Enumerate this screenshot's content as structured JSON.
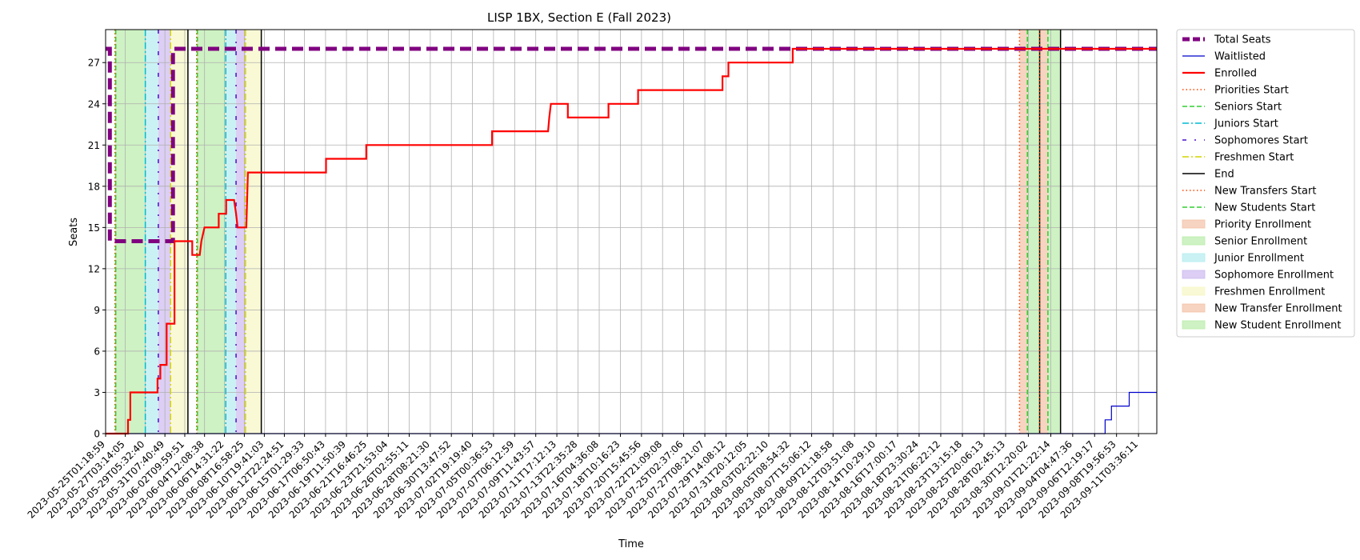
{
  "chart_data": {
    "type": "line",
    "title": "LISP 1BX, Section E (Fall 2023)",
    "xlabel": "Time",
    "ylabel": "Seats",
    "ylim": [
      0,
      29.4
    ],
    "yticks": [
      0,
      3,
      6,
      9,
      12,
      15,
      18,
      21,
      24,
      27
    ],
    "grid": true,
    "legend_position": "outside-right",
    "x_range": [
      "2023-05-25T01:18:59",
      "2023-09-13T02:00:00"
    ],
    "x_ticks": [
      "2023-05-25T01:18:59",
      "2023-05-27T03:14:05",
      "2023-05-29T05:32:40",
      "2023-05-31T07:40:49",
      "2023-06-02T09:59:51",
      "2023-06-04T12:08:38",
      "2023-06-06T14:31:22",
      "2023-06-08T16:58:25",
      "2023-06-10T19:41:03",
      "2023-06-12T22:24:51",
      "2023-06-15T01:29:33",
      "2023-06-17T06:50:43",
      "2023-06-19T11:50:39",
      "2023-06-21T16:46:25",
      "2023-06-23T21:53:04",
      "2023-06-26T02:55:11",
      "2023-06-28T08:21:30",
      "2023-06-30T13:47:52",
      "2023-07-02T19:19:40",
      "2023-07-05T00:36:53",
      "2023-07-07T06:12:59",
      "2023-07-09T11:43:57",
      "2023-07-11T17:12:13",
      "2023-07-13T22:35:28",
      "2023-07-16T04:36:08",
      "2023-07-18T10:16:23",
      "2023-07-20T15:45:56",
      "2023-07-22T21:09:08",
      "2023-07-25T02:37:06",
      "2023-07-27T08:21:07",
      "2023-07-29T14:08:12",
      "2023-07-31T20:12:05",
      "2023-08-03T02:22:10",
      "2023-08-05T08:54:32",
      "2023-08-07T15:06:12",
      "2023-08-09T21:18:58",
      "2023-08-12T03:51:08",
      "2023-08-14T10:29:10",
      "2023-08-16T17:00:17",
      "2023-08-18T23:30:24",
      "2023-08-21T06:22:12",
      "2023-08-23T13:15:18",
      "2023-08-25T20:06:13",
      "2023-08-28T02:45:13",
      "2023-08-30T12:20:02",
      "2023-09-01T21:22:14",
      "2023-09-04T04:47:36",
      "2023-09-06T12:19:17",
      "2023-09-08T19:56:53",
      "2023-09-11T03:36:11"
    ],
    "series": [
      {
        "name": "Total Seats",
        "color": "#800080",
        "style": "dashed-thick",
        "points": [
          [
            "2023-05-25T01:18:59",
            28
          ],
          [
            "2023-05-25T12:00:00",
            28
          ],
          [
            "2023-05-25T12:00:00",
            14
          ],
          [
            "2023-06-01T04:00:00",
            14
          ],
          [
            "2023-06-01T04:00:00",
            28
          ],
          [
            "2023-09-13T02:00:00",
            28
          ]
        ]
      },
      {
        "name": "Waitlisted",
        "color": "#0000cc",
        "style": "solid-thin",
        "points": [
          [
            "2023-05-25T01:18:59",
            0
          ],
          [
            "2023-09-07T15:00:00",
            0
          ],
          [
            "2023-09-07T15:00:00",
            1
          ],
          [
            "2023-09-08T07:00:00",
            1
          ],
          [
            "2023-09-08T07:00:00",
            2
          ],
          [
            "2023-09-10T04:00:00",
            2
          ],
          [
            "2023-09-10T04:00:00",
            3
          ],
          [
            "2023-09-13T02:00:00",
            3
          ]
        ]
      },
      {
        "name": "Enrolled",
        "color": "#ff0000",
        "style": "solid-thick",
        "points": [
          [
            "2023-05-25T01:18:59",
            0
          ],
          [
            "2023-05-27T10:00:00",
            0
          ],
          [
            "2023-05-27T10:00:00",
            1
          ],
          [
            "2023-05-27T16:00:00",
            1
          ],
          [
            "2023-05-27T16:00:00",
            3
          ],
          [
            "2023-05-30T13:00:00",
            3
          ],
          [
            "2023-05-30T13:00:00",
            4
          ],
          [
            "2023-05-30T20:00:00",
            4
          ],
          [
            "2023-05-30T20:00:00",
            5
          ],
          [
            "2023-05-31T12:00:00",
            5
          ],
          [
            "2023-05-31T12:00:00",
            8
          ],
          [
            "2023-06-01T08:00:00",
            8
          ],
          [
            "2023-06-01T08:00:00",
            14
          ],
          [
            "2023-06-03T05:00:00",
            14
          ],
          [
            "2023-06-03T05:00:00",
            13
          ],
          [
            "2023-06-04T00:00:00",
            13
          ],
          [
            "2023-06-04T04:00:00",
            14
          ],
          [
            "2023-06-04T12:00:00",
            15
          ],
          [
            "2023-06-06T00:00:00",
            15
          ],
          [
            "2023-06-06T00:00:00",
            16
          ],
          [
            "2023-06-06T19:00:00",
            16
          ],
          [
            "2023-06-06T19:00:00",
            17
          ],
          [
            "2023-06-07T15:00:00",
            17
          ],
          [
            "2023-06-07T20:00:00",
            16
          ],
          [
            "2023-06-08T00:00:00",
            15
          ],
          [
            "2023-06-08T22:00:00",
            15
          ],
          [
            "2023-06-09T02:00:00",
            19
          ],
          [
            "2023-06-17T08:00:00",
            19
          ],
          [
            "2023-06-17T08:00:00",
            20
          ],
          [
            "2023-06-21T14:00:00",
            20
          ],
          [
            "2023-06-21T14:00:00",
            21
          ],
          [
            "2023-07-04T21:00:00",
            21
          ],
          [
            "2023-07-04T21:00:00",
            22
          ],
          [
            "2023-07-10T19:00:00",
            22
          ],
          [
            "2023-07-10T22:00:00",
            23
          ],
          [
            "2023-07-11T02:00:00",
            24
          ],
          [
            "2023-07-12T21:00:00",
            24
          ],
          [
            "2023-07-12T21:00:00",
            23
          ],
          [
            "2023-07-17T04:00:00",
            23
          ],
          [
            "2023-07-17T04:00:00",
            24
          ],
          [
            "2023-07-20T07:00:00",
            24
          ],
          [
            "2023-07-20T07:00:00",
            25
          ],
          [
            "2023-07-29T05:00:00",
            25
          ],
          [
            "2023-07-29T05:00:00",
            26
          ],
          [
            "2023-07-29T20:00:00",
            26
          ],
          [
            "2023-07-29T20:00:00",
            27
          ],
          [
            "2023-08-05T15:00:00",
            27
          ],
          [
            "2023-08-05T15:00:00",
            28
          ],
          [
            "2023-09-13T02:00:00",
            28
          ]
        ]
      }
    ],
    "periods": [
      {
        "label": "Priority Enrollment",
        "color": "#f4c2a6",
        "start": "2023-05-26T01:00:00",
        "end": "2023-05-26T03:00:00"
      },
      {
        "label": "Senior Enrollment",
        "color": "#b9ecaa",
        "start": "2023-05-26T03:00:00",
        "end": "2023-05-29T06:00:00"
      },
      {
        "label": "Junior Enrollment",
        "color": "#b3ecf0",
        "start": "2023-05-29T06:00:00",
        "end": "2023-05-30T15:00:00"
      },
      {
        "label": "Sophomore Enrollment",
        "color": "#cdb9f0",
        "start": "2023-05-30T15:00:00",
        "end": "2023-05-31T22:00:00"
      },
      {
        "label": "Freshmen Enrollment",
        "color": "#f7f7c4",
        "start": "2023-05-31T22:00:00",
        "end": "2023-06-02T18:00:00"
      },
      {
        "label": "Priority Enrollment",
        "color": "#f4c2a6",
        "start": "2023-06-03T16:00:00",
        "end": "2023-06-03T18:00:00"
      },
      {
        "label": "Senior Enrollment",
        "color": "#b9ecaa",
        "start": "2023-06-03T18:00:00",
        "end": "2023-06-06T18:00:00"
      },
      {
        "label": "Junior Enrollment",
        "color": "#b3ecf0",
        "start": "2023-06-06T18:00:00",
        "end": "2023-06-07T20:00:00"
      },
      {
        "label": "Sophomore Enrollment",
        "color": "#cdb9f0",
        "start": "2023-06-07T20:00:00",
        "end": "2023-06-08T20:00:00"
      },
      {
        "label": "Freshmen Enrollment",
        "color": "#f7f7c4",
        "start": "2023-06-08T20:00:00",
        "end": "2023-06-10T12:00:00"
      },
      {
        "label": "New Transfer Enrollment",
        "color": "#f4c2a6",
        "start": "2023-08-29T14:00:00",
        "end": "2023-08-30T10:00:00"
      },
      {
        "label": "New Student Enrollment",
        "color": "#b9ecaa",
        "start": "2023-08-30T10:00:00",
        "end": "2023-08-31T17:00:00"
      },
      {
        "label": "New Transfer Enrollment",
        "color": "#f4c2a6",
        "start": "2023-08-31T17:00:00",
        "end": "2023-09-01T14:00:00"
      },
      {
        "label": "New Student Enrollment",
        "color": "#b9ecaa",
        "start": "2023-09-01T14:00:00",
        "end": "2023-09-02T22:00:00"
      }
    ],
    "markers": [
      {
        "label": "Priorities Start",
        "color": "#ff4500",
        "dash": "dotted",
        "at": "2023-05-26T01:00:00"
      },
      {
        "label": "Seniors Start",
        "color": "#32cd32",
        "dash": "dashed",
        "at": "2023-05-26T03:00:00"
      },
      {
        "label": "Juniors Start",
        "color": "#00bcd4",
        "dash": "dashdot",
        "at": "2023-05-29T06:00:00"
      },
      {
        "label": "Sophomores Start",
        "color": "#4b0ecc",
        "dash": "dashdot-sparse",
        "at": "2023-05-30T15:00:00"
      },
      {
        "label": "Freshmen Start",
        "color": "#d4d400",
        "dash": "dashdot",
        "at": "2023-05-31T22:00:00"
      },
      {
        "label": "End",
        "color": "#000000",
        "dash": "solid",
        "at": "2023-06-02T18:00:00"
      },
      {
        "label": "Priorities Start",
        "color": "#ff4500",
        "dash": "dotted",
        "at": "2023-06-03T16:00:00"
      },
      {
        "label": "Seniors Start",
        "color": "#32cd32",
        "dash": "dashed",
        "at": "2023-06-03T18:00:00"
      },
      {
        "label": "Juniors Start",
        "color": "#00bcd4",
        "dash": "dashdot",
        "at": "2023-06-06T18:00:00"
      },
      {
        "label": "Sophomores Start",
        "color": "#4b0ecc",
        "dash": "dashdot-sparse",
        "at": "2023-06-07T20:00:00"
      },
      {
        "label": "Freshmen Start",
        "color": "#d4d400",
        "dash": "dashdot",
        "at": "2023-06-08T20:00:00"
      },
      {
        "label": "End",
        "color": "#000000",
        "dash": "solid",
        "at": "2023-06-10T12:00:00"
      },
      {
        "label": "New Transfers Start",
        "color": "#ff4500",
        "dash": "dotted",
        "at": "2023-08-29T14:00:00"
      },
      {
        "label": "New Students Start",
        "color": "#32cd32",
        "dash": "dashed",
        "at": "2023-08-30T10:00:00"
      },
      {
        "label": "End",
        "color": "#000000",
        "dash": "solid",
        "at": "2023-08-31T17:00:00"
      },
      {
        "label": "New Transfers Start",
        "color": "#ff4500",
        "dash": "dotted",
        "at": "2023-08-31T17:00:00"
      },
      {
        "label": "New Students Start",
        "color": "#32cd32",
        "dash": "dashed",
        "at": "2023-09-01T14:00:00"
      },
      {
        "label": "End",
        "color": "#000000",
        "dash": "solid",
        "at": "2023-09-02T22:00:00"
      }
    ],
    "legend": [
      {
        "label": "Total Seats",
        "kind": "line",
        "color": "#800080",
        "dash": "dashed-thick"
      },
      {
        "label": "Waitlisted",
        "kind": "line",
        "color": "#0000cc",
        "dash": "solid-thin"
      },
      {
        "label": "Enrolled",
        "kind": "line",
        "color": "#ff0000",
        "dash": "solid-thick"
      },
      {
        "label": "Priorities Start",
        "kind": "line",
        "color": "#ff4500",
        "dash": "dotted"
      },
      {
        "label": "Seniors Start",
        "kind": "line",
        "color": "#32cd32",
        "dash": "dashed"
      },
      {
        "label": "Juniors Start",
        "kind": "line",
        "color": "#00bcd4",
        "dash": "dashdot"
      },
      {
        "label": "Sophomores Start",
        "kind": "line",
        "color": "#4b0ecc",
        "dash": "dashdot-sparse"
      },
      {
        "label": "Freshmen Start",
        "kind": "line",
        "color": "#d4d400",
        "dash": "dashdot"
      },
      {
        "label": "End",
        "kind": "line",
        "color": "#000000",
        "dash": "solid"
      },
      {
        "label": "New Transfers Start",
        "kind": "line",
        "color": "#ff4500",
        "dash": "dotted"
      },
      {
        "label": "New Students Start",
        "kind": "line",
        "color": "#32cd32",
        "dash": "dashed"
      },
      {
        "label": "Priority Enrollment",
        "kind": "patch",
        "color": "#f4c2a6"
      },
      {
        "label": "Senior Enrollment",
        "kind": "patch",
        "color": "#b9ecaa"
      },
      {
        "label": "Junior Enrollment",
        "kind": "patch",
        "color": "#b3ecf0"
      },
      {
        "label": "Sophomore Enrollment",
        "kind": "patch",
        "color": "#cdb9f0"
      },
      {
        "label": "Freshmen Enrollment",
        "kind": "patch",
        "color": "#f7f7c4"
      },
      {
        "label": "New Transfer Enrollment",
        "kind": "patch",
        "color": "#f4c2a6"
      },
      {
        "label": "New Student Enrollment",
        "kind": "patch",
        "color": "#b9ecaa"
      }
    ]
  }
}
